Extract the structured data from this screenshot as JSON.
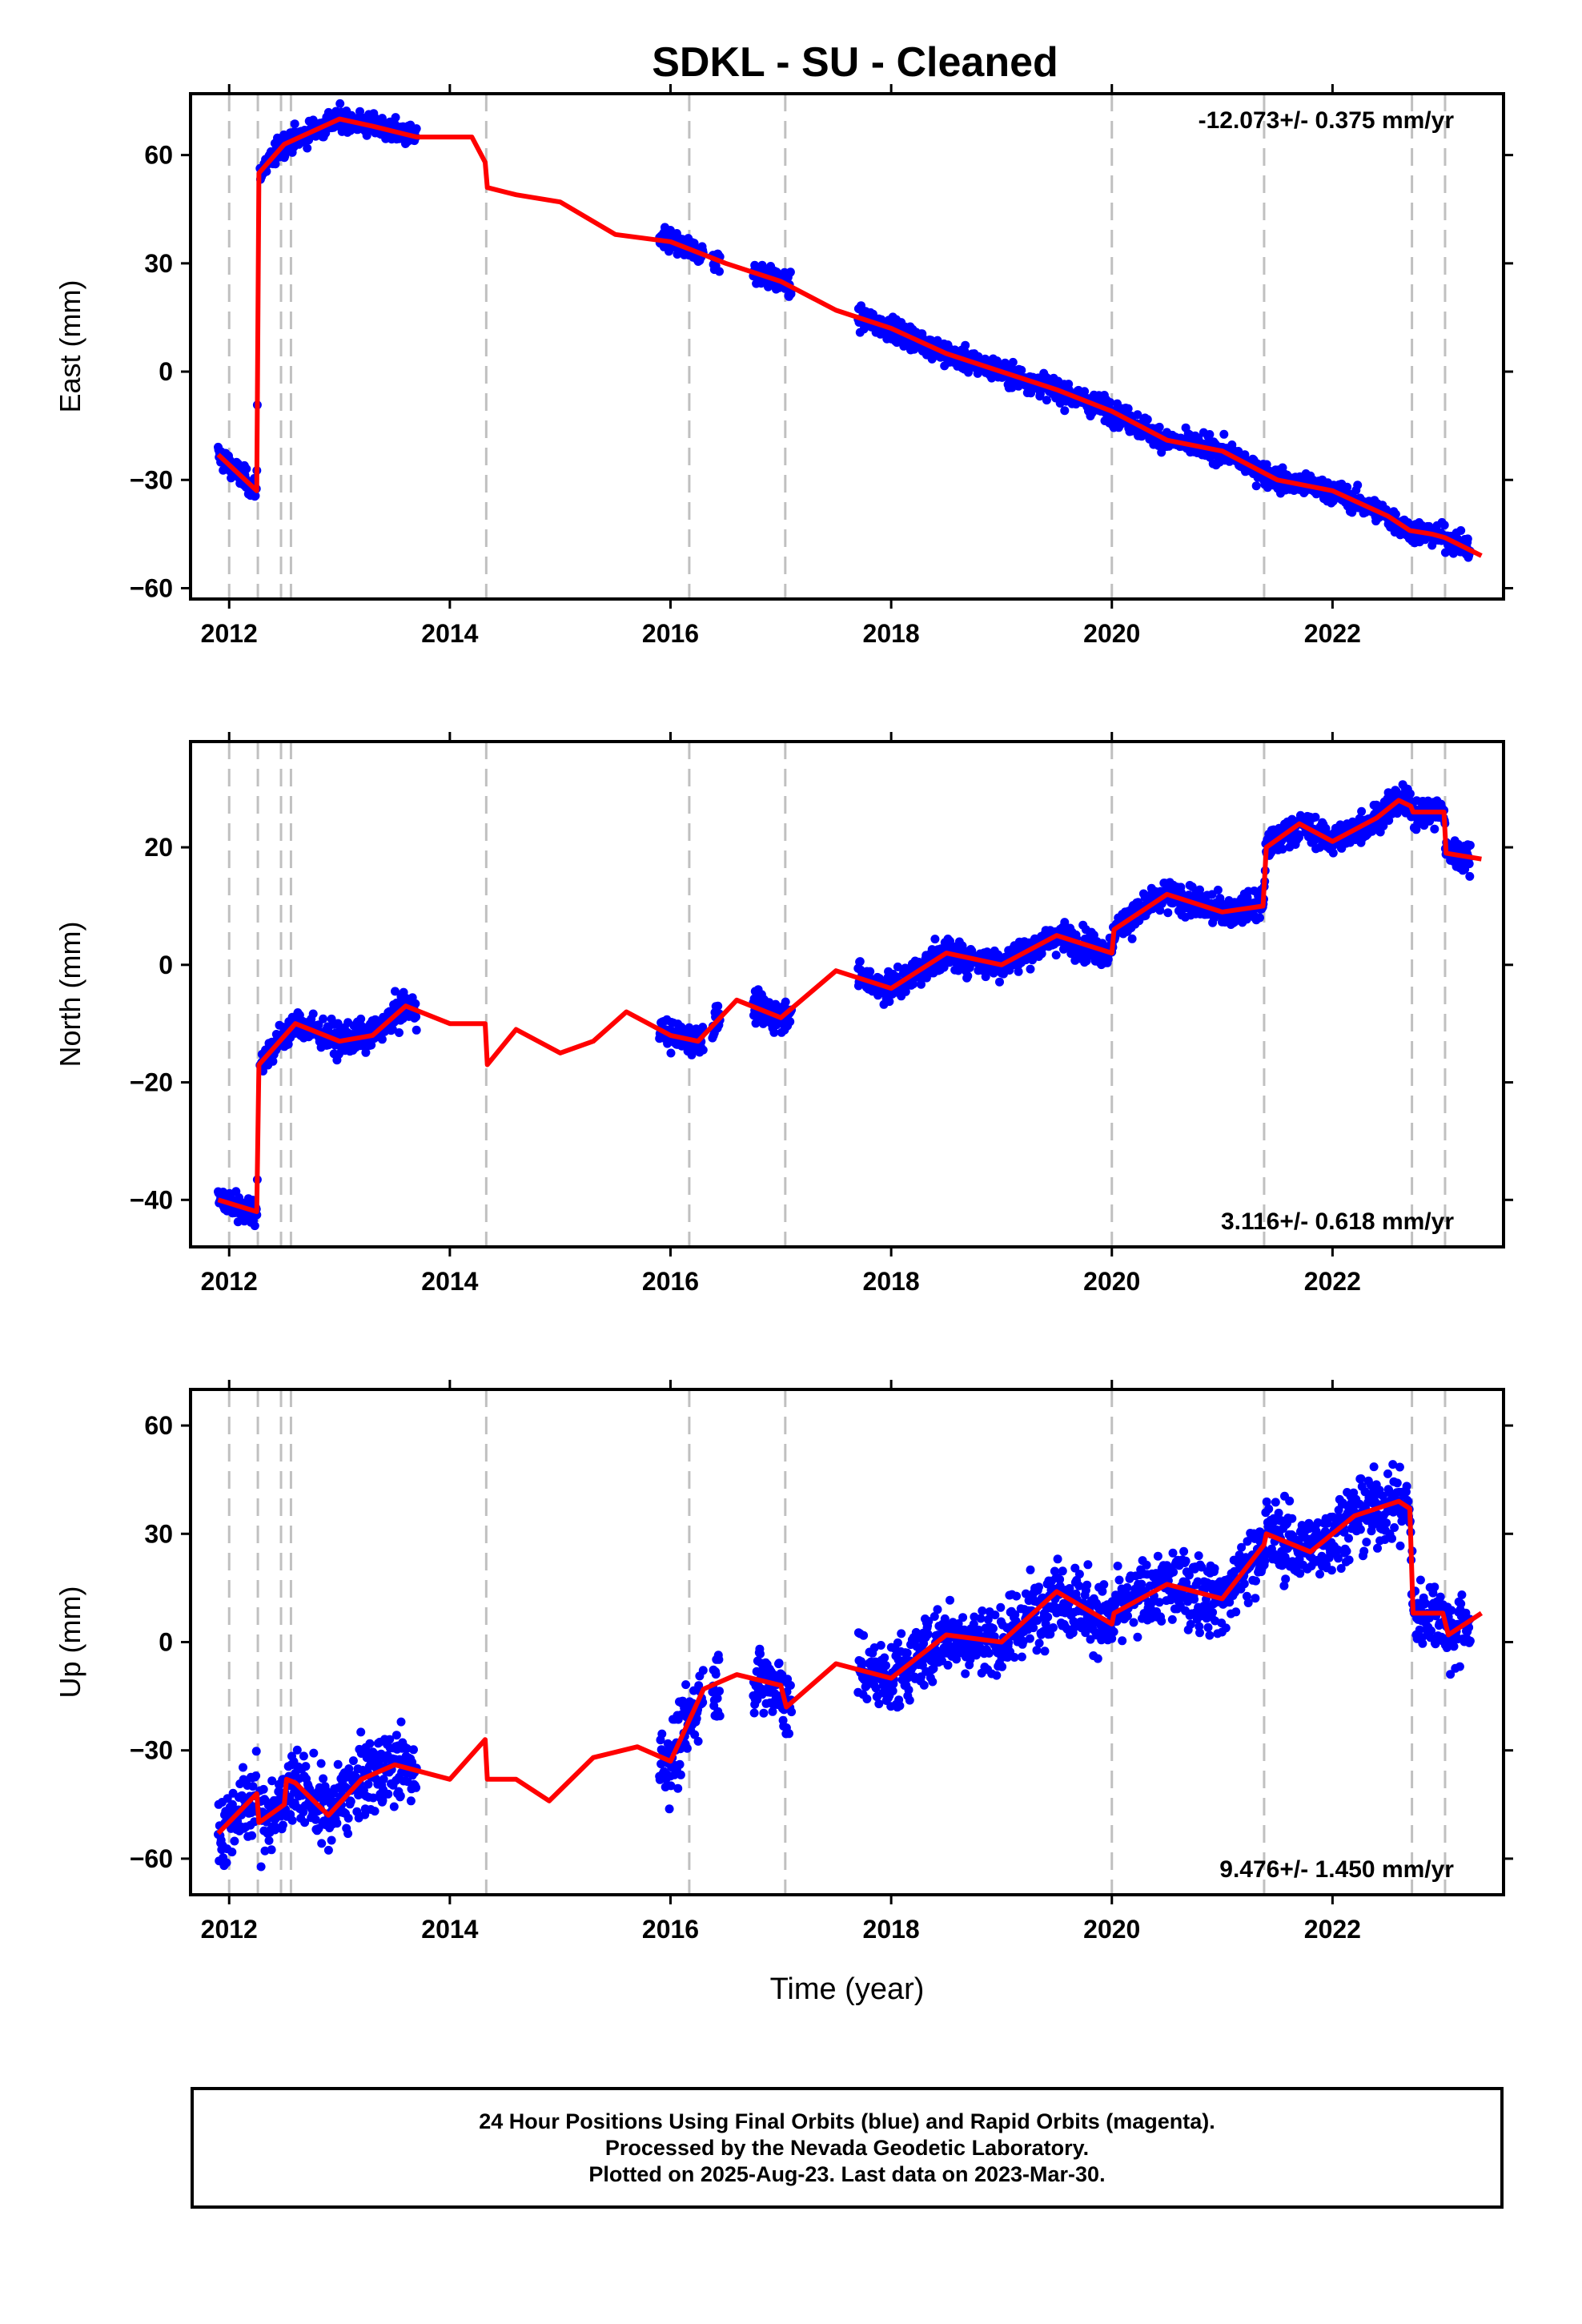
{
  "title": "SDKL  - SU - Cleaned",
  "footer": {
    "line1": "24 Hour Positions Using Final Orbits (blue) and Rapid Orbits (magenta).",
    "line2": "Processed by the Nevada Geodetic Laboratory.",
    "line3": "Plotted on 2025-Aug-23. Last data on 2023-Mar-30."
  },
  "colors": {
    "observations": "#0000ff",
    "model": "#ff0000",
    "offsets": "#c0c0c0"
  },
  "chart_data": [
    {
      "type": "scatter",
      "component": "east",
      "ylabel": "East (mm)",
      "xlabel": "",
      "rate_label": "-12.073+/- 0.375 mm/yr",
      "rate_position": "top-right",
      "xlim": [
        2011.65,
        2023.55
      ],
      "ylim": [
        -63,
        77
      ],
      "yticks": [
        -60,
        -30,
        0,
        30,
        60
      ],
      "xticks": [
        2012,
        2014,
        2016,
        2018,
        2020,
        2022
      ],
      "offset_epochs": [
        2012.0,
        2012.26,
        2012.47,
        2012.56,
        2014.33,
        2016.17,
        2017.04,
        2020.0,
        2021.38,
        2022.72,
        2023.02
      ],
      "data_segments": [
        [
          2011.9,
          2012.26
        ],
        [
          2012.28,
          2013.7
        ],
        [
          2015.9,
          2016.3
        ],
        [
          2016.38,
          2016.45
        ],
        [
          2016.75,
          2017.1
        ],
        [
          2017.7,
          2023.25
        ]
      ],
      "spread": 2.2,
      "model": [
        [
          2011.9,
          -23
        ],
        [
          2012.25,
          -33
        ],
        [
          2012.27,
          55
        ],
        [
          2012.5,
          63
        ],
        [
          2013.0,
          70
        ],
        [
          2013.3,
          68
        ],
        [
          2013.7,
          65
        ],
        [
          2014.2,
          65
        ],
        [
          2014.32,
          58
        ],
        [
          2014.34,
          51
        ],
        [
          2014.6,
          49
        ],
        [
          2015.0,
          47
        ],
        [
          2015.5,
          38
        ],
        [
          2016.0,
          36
        ],
        [
          2016.5,
          30
        ],
        [
          2017.0,
          25
        ],
        [
          2017.5,
          17
        ],
        [
          2018.0,
          12
        ],
        [
          2018.5,
          5
        ],
        [
          2019.0,
          0
        ],
        [
          2019.5,
          -5
        ],
        [
          2020.0,
          -11
        ],
        [
          2020.5,
          -19
        ],
        [
          2021.0,
          -22
        ],
        [
          2021.5,
          -30
        ],
        [
          2022.0,
          -33
        ],
        [
          2022.5,
          -40
        ],
        [
          2022.7,
          -44
        ],
        [
          2022.9,
          -45
        ],
        [
          2023.02,
          -46
        ],
        [
          2023.35,
          -51
        ]
      ]
    },
    {
      "type": "scatter",
      "component": "north",
      "ylabel": "North (mm)",
      "xlabel": "",
      "rate_label": "3.116+/- 0.618 mm/yr",
      "rate_position": "bottom-right",
      "xlim": [
        2011.65,
        2023.55
      ],
      "ylim": [
        -48,
        38
      ],
      "yticks": [
        -40,
        -20,
        0,
        20
      ],
      "xticks": [
        2012,
        2014,
        2016,
        2018,
        2020,
        2022
      ],
      "offset_epochs": [
        2012.0,
        2012.26,
        2012.47,
        2012.56,
        2014.33,
        2016.17,
        2017.04,
        2020.0,
        2021.38,
        2022.72,
        2023.02
      ],
      "data_segments": [
        [
          2011.9,
          2012.26
        ],
        [
          2012.28,
          2013.7
        ],
        [
          2015.9,
          2016.3
        ],
        [
          2016.38,
          2016.45
        ],
        [
          2016.75,
          2017.1
        ],
        [
          2017.7,
          2023.25
        ]
      ],
      "spread": 1.8,
      "model": [
        [
          2011.9,
          -40
        ],
        [
          2012.25,
          -42
        ],
        [
          2012.27,
          -17
        ],
        [
          2012.6,
          -10
        ],
        [
          2013.0,
          -13
        ],
        [
          2013.3,
          -12
        ],
        [
          2013.6,
          -7
        ],
        [
          2014.0,
          -10
        ],
        [
          2014.32,
          -10
        ],
        [
          2014.34,
          -17
        ],
        [
          2014.6,
          -11
        ],
        [
          2015.0,
          -15
        ],
        [
          2015.3,
          -13
        ],
        [
          2015.6,
          -8
        ],
        [
          2016.0,
          -12
        ],
        [
          2016.25,
          -13
        ],
        [
          2016.6,
          -6
        ],
        [
          2017.0,
          -9
        ],
        [
          2017.5,
          -1
        ],
        [
          2018.0,
          -4
        ],
        [
          2018.5,
          2
        ],
        [
          2019.0,
          0
        ],
        [
          2019.5,
          5
        ],
        [
          2020.0,
          2
        ],
        [
          2020.02,
          6
        ],
        [
          2020.5,
          12
        ],
        [
          2021.0,
          9
        ],
        [
          2021.37,
          10
        ],
        [
          2021.4,
          20
        ],
        [
          2021.7,
          24
        ],
        [
          2022.0,
          21
        ],
        [
          2022.4,
          25
        ],
        [
          2022.6,
          28
        ],
        [
          2022.71,
          27
        ],
        [
          2022.73,
          26
        ],
        [
          2023.01,
          26
        ],
        [
          2023.03,
          19
        ],
        [
          2023.35,
          18
        ]
      ]
    },
    {
      "type": "scatter",
      "component": "up",
      "ylabel": "Up (mm)",
      "xlabel": "Time (year)",
      "rate_label": "9.476+/- 1.450 mm/yr",
      "rate_position": "bottom-right",
      "xlim": [
        2011.65,
        2023.55
      ],
      "ylim": [
        -70,
        70
      ],
      "yticks": [
        -60,
        -30,
        0,
        30,
        60
      ],
      "xticks": [
        2012,
        2014,
        2016,
        2018,
        2020,
        2022
      ],
      "offset_epochs": [
        2012.0,
        2012.26,
        2012.47,
        2012.56,
        2014.33,
        2016.17,
        2017.04,
        2020.0,
        2021.38,
        2022.72,
        2023.02
      ],
      "data_segments": [
        [
          2011.9,
          2012.26
        ],
        [
          2012.28,
          2013.7
        ],
        [
          2015.9,
          2016.3
        ],
        [
          2016.38,
          2016.45
        ],
        [
          2016.75,
          2017.1
        ],
        [
          2017.7,
          2023.25
        ]
      ],
      "spread": 7,
      "model": [
        [
          2011.9,
          -53
        ],
        [
          2012.25,
          -42
        ],
        [
          2012.27,
          -50
        ],
        [
          2012.5,
          -45
        ],
        [
          2012.52,
          -38
        ],
        [
          2012.6,
          -39
        ],
        [
          2012.9,
          -48
        ],
        [
          2013.2,
          -38
        ],
        [
          2013.5,
          -34
        ],
        [
          2014.0,
          -38
        ],
        [
          2014.32,
          -27
        ],
        [
          2014.34,
          -38
        ],
        [
          2014.6,
          -38
        ],
        [
          2014.9,
          -44
        ],
        [
          2015.3,
          -32
        ],
        [
          2015.7,
          -29
        ],
        [
          2016.0,
          -33
        ],
        [
          2016.3,
          -13
        ],
        [
          2016.6,
          -9
        ],
        [
          2017.0,
          -12
        ],
        [
          2017.05,
          -18
        ],
        [
          2017.5,
          -6
        ],
        [
          2018.0,
          -10
        ],
        [
          2018.5,
          2
        ],
        [
          2019.0,
          0
        ],
        [
          2019.5,
          14
        ],
        [
          2020.0,
          5
        ],
        [
          2020.02,
          8
        ],
        [
          2020.5,
          16
        ],
        [
          2021.0,
          12
        ],
        [
          2021.38,
          27
        ],
        [
          2021.4,
          30
        ],
        [
          2021.8,
          25
        ],
        [
          2022.2,
          35
        ],
        [
          2022.6,
          39
        ],
        [
          2022.7,
          37
        ],
        [
          2022.73,
          8
        ],
        [
          2023.0,
          8
        ],
        [
          2023.05,
          2
        ],
        [
          2023.35,
          8
        ]
      ]
    }
  ]
}
